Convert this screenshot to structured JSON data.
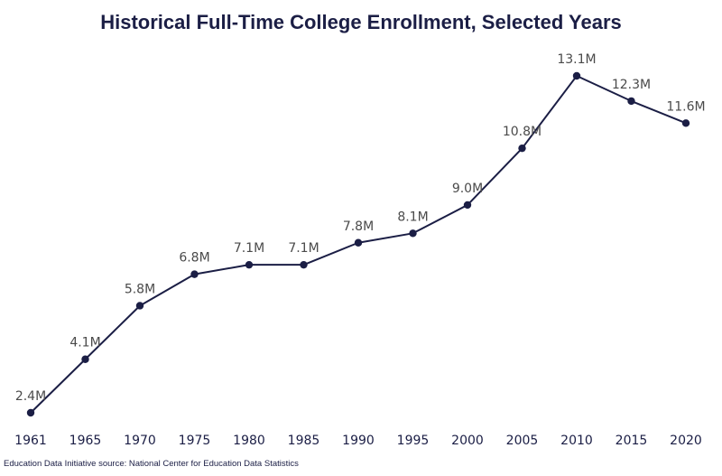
{
  "title": "Historical Full-Time College Enrollment, Selected Years",
  "source_note": "Education Data Initiative source: National Center for Education Data Statistics",
  "colors": {
    "line": "#1b1e45",
    "point": "#1b1e45",
    "data_label": "#4a4a4a",
    "tick_label": "#1b1e45",
    "title": "#1b1e45"
  },
  "chart_data": {
    "type": "line",
    "title": "Historical Full-Time College Enrollment, Selected Years",
    "xlabel": "",
    "ylabel": "",
    "grid": false,
    "legend": "none",
    "x": [
      "1961",
      "1965",
      "1970",
      "1975",
      "1980",
      "1985",
      "1990",
      "1995",
      "2000",
      "2005",
      "2010",
      "2015",
      "2020"
    ],
    "series": [
      {
        "values": [
          2.4,
          4.1,
          5.8,
          6.8,
          7.1,
          7.1,
          7.8,
          8.1,
          9.0,
          10.8,
          13.1,
          12.3,
          11.6
        ],
        "labels": [
          "2.4M",
          "4.1M",
          "5.8M",
          "6.8M",
          "7.1M",
          "7.1M",
          "7.8M",
          "8.1M",
          "9.0M",
          "10.8M",
          "13.1M",
          "12.3M",
          "11.6M"
        ]
      }
    ]
  }
}
